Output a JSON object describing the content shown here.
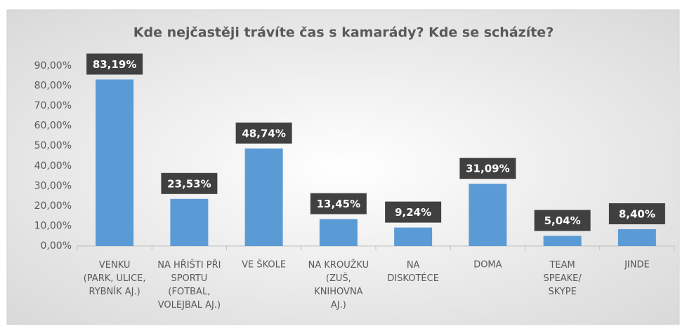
{
  "chart_data": {
    "type": "bar",
    "title": "Kde nejčastěji trávíte čas s kamarády? Kde se scházíte?",
    "categories": [
      "VENKU\n(PARK, ULICE,\nRYBNÍK AJ.)",
      "NA HŘIŠTI PŘI\nSPORTU\n(FOTBAL,\nVOLEJBAL AJ.)",
      "VE ŠKOLE",
      "NA KROUŽKU\n(ZUŠ,\nKNIHOVNA\nAJ.)",
      "NA\nDISKOTÉCE",
      "DOMA",
      "TEAM\nSPEAKE/\nSKYPE",
      "JINDE"
    ],
    "values": [
      83.19,
      23.53,
      48.74,
      13.45,
      9.24,
      31.09,
      5.04,
      8.4
    ],
    "value_labels": [
      "83,19%",
      "23,53%",
      "48,74%",
      "13,45%",
      "9,24%",
      "31,09%",
      "5,04%",
      "8,40%"
    ],
    "color": "#5b9bd5",
    "ylim": [
      0,
      90
    ],
    "yticks": [
      {
        "value": 0,
        "label": "0,00%"
      },
      {
        "value": 10,
        "label": "10,00%"
      },
      {
        "value": 20,
        "label": "20,00%"
      },
      {
        "value": 30,
        "label": "30,00%"
      },
      {
        "value": 40,
        "label": "40,00%"
      },
      {
        "value": 50,
        "label": "50,00%"
      },
      {
        "value": 60,
        "label": "60,00%"
      },
      {
        "value": 70,
        "label": "70,00%"
      },
      {
        "value": 80,
        "label": "80,00%"
      },
      {
        "value": 90,
        "label": "90,00%"
      }
    ],
    "grid": false
  }
}
